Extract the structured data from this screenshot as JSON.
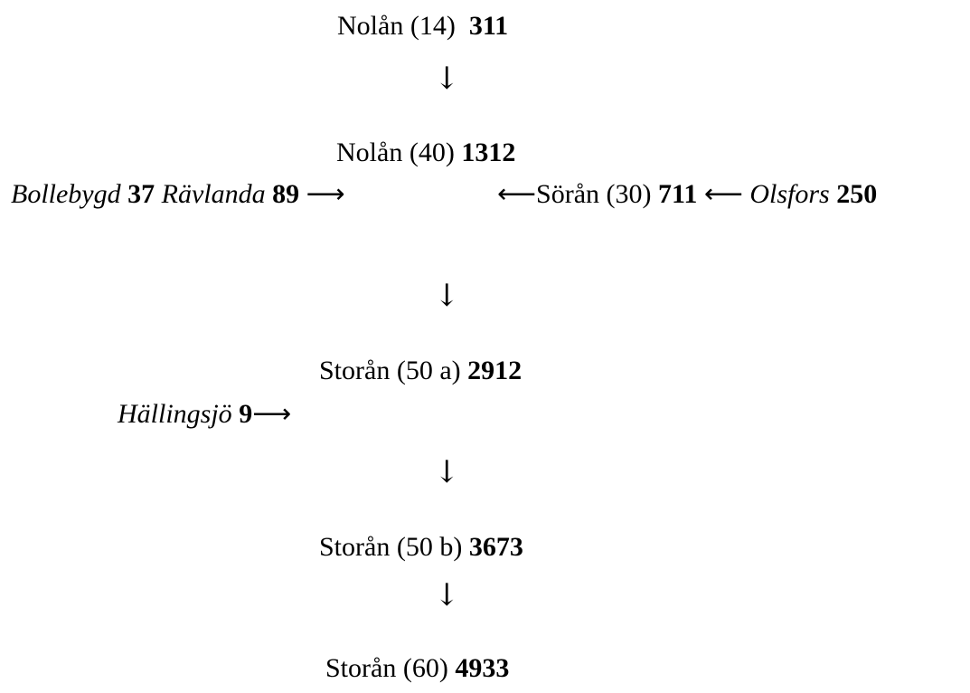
{
  "nodes": [
    {
      "name": "Nolån",
      "code": "(14)",
      "value": 311
    },
    {
      "name": "Nolån",
      "code": "(40)",
      "value": 1312
    },
    {
      "name": "Sörån",
      "code": "(30)",
      "value": 711
    },
    {
      "name": "Storån",
      "code": "(50 a)",
      "value": 2912
    },
    {
      "name": "Storån",
      "code": "(50 b)",
      "value": 3673
    },
    {
      "name": "Storån",
      "code": "(60)",
      "value": 4933
    }
  ],
  "tributaries": [
    {
      "name": "Bollebygd",
      "value": 37
    },
    {
      "name": "Rävlanda",
      "value": 89
    },
    {
      "name": "Olsfors",
      "value": 250
    },
    {
      "name": "Hällingsjö",
      "value": 9
    }
  ]
}
